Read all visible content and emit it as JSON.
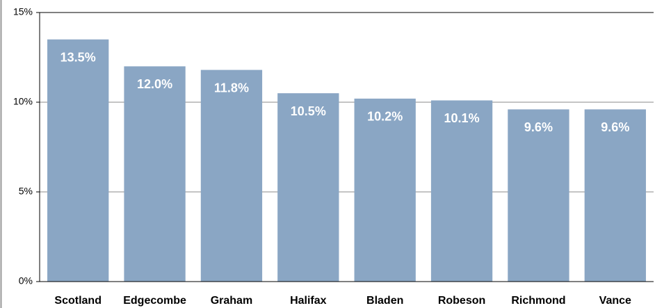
{
  "chart_data": {
    "type": "bar",
    "categories": [
      "Scotland",
      "Edgecombe",
      "Graham",
      "Halifax",
      "Bladen",
      "Robeson",
      "Richmond",
      "Vance"
    ],
    "values": [
      13.5,
      12.0,
      11.8,
      10.5,
      10.2,
      10.1,
      9.6,
      9.6
    ],
    "value_labels": [
      "13.5%",
      "12.0%",
      "11.8%",
      "10.5%",
      "10.2%",
      "10.1%",
      "9.6%",
      "9.6%"
    ],
    "color": "#8aa6c4",
    "ylim": [
      0,
      15
    ],
    "yticks": [
      {
        "value": 0,
        "label": "0%"
      },
      {
        "value": 5,
        "label": "5%"
      },
      {
        "value": 10,
        "label": "10%"
      },
      {
        "value": 15,
        "label": "15%"
      }
    ],
    "grid": true
  }
}
